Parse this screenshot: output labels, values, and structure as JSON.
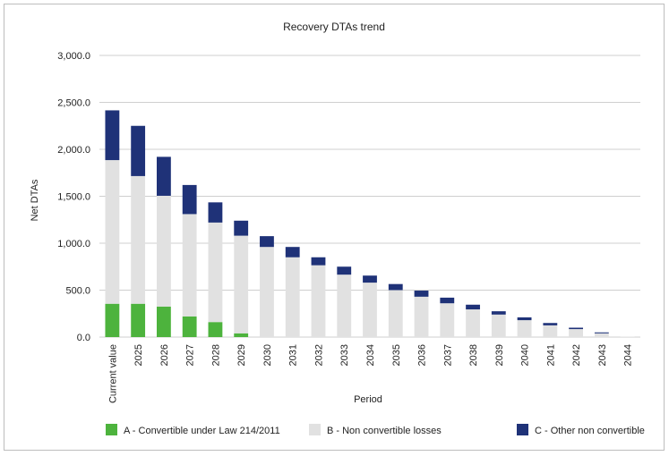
{
  "chart_data": {
    "type": "bar",
    "stacked": true,
    "title": "Recovery DTAs trend",
    "xlabel": "Period",
    "ylabel": "Net DTAs",
    "ylim": [
      0,
      3000
    ],
    "yticks": [
      "0.0",
      "500.0",
      "1,000.0",
      "1,500.0",
      "2,000.0",
      "2,500.0",
      "3,000.0"
    ],
    "ytick_values": [
      0,
      500,
      1000,
      1500,
      2000,
      2500,
      3000
    ],
    "grid": true,
    "legend_position": "bottom",
    "categories": [
      "Current value",
      "2025",
      "2026",
      "2027",
      "2028",
      "2029",
      "2030",
      "2031",
      "2032",
      "2033",
      "2034",
      "2035",
      "2036",
      "2037",
      "2038",
      "2039",
      "2040",
      "2041",
      "2042",
      "2043",
      "2044"
    ],
    "series": [
      {
        "name": "A - Convertible under Law 214/2011",
        "color": "#4db33d",
        "values": [
          355,
          355,
          325,
          220,
          160,
          40,
          0,
          0,
          0,
          0,
          0,
          0,
          0,
          0,
          0,
          0,
          0,
          0,
          0,
          0,
          0
        ]
      },
      {
        "name": "B - Non convertible losses",
        "color": "#e1e1e1",
        "values": [
          1530,
          1360,
          1180,
          1090,
          1060,
          1040,
          960,
          850,
          765,
          665,
          580,
          500,
          430,
          360,
          295,
          240,
          180,
          125,
          85,
          40,
          5
        ]
      },
      {
        "name": "C - Other non convertible",
        "color": "#1f3278",
        "values": [
          530,
          535,
          415,
          310,
          215,
          160,
          115,
          110,
          85,
          85,
          75,
          65,
          65,
          60,
          50,
          35,
          30,
          25,
          15,
          10,
          0
        ]
      }
    ]
  }
}
